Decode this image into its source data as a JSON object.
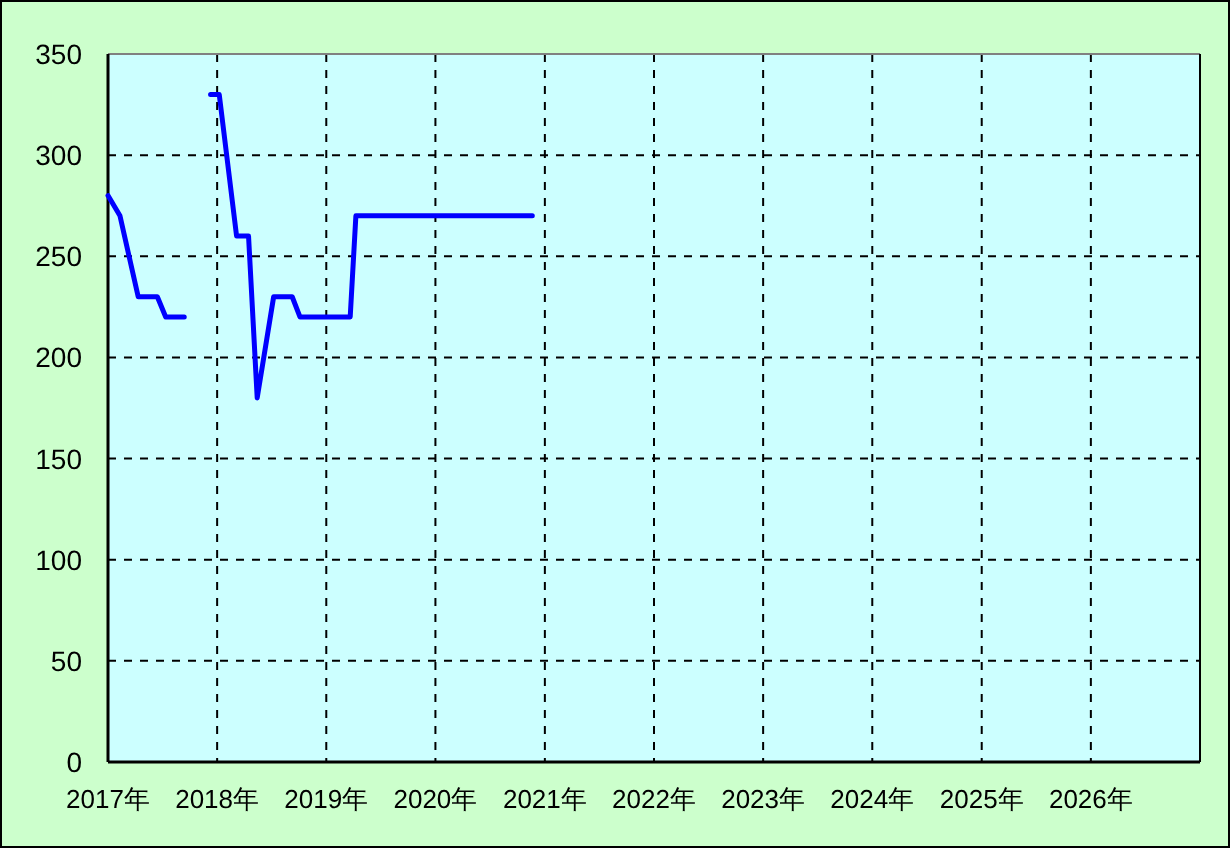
{
  "chart_data": {
    "type": "line",
    "series": [
      {
        "color": "#0000ff",
        "x": [
          "2017-01-01",
          "2017-02-10",
          "2017-04-12",
          "2017-06-15",
          "2017-07-13",
          "2017-09-13"
        ],
        "values": [
          280,
          270,
          230,
          230,
          220,
          220
        ]
      },
      {
        "color": "#0000ff",
        "x": [
          "2017-12-10",
          "2018-01-08",
          "2018-03-07",
          "2018-04-16",
          "2018-05-15",
          "2018-07-09",
          "2018-09-09",
          "2018-10-05",
          "2019-03-22",
          "2019-04-10",
          "2020-11-20"
        ],
        "values": [
          330,
          330,
          260,
          260,
          180,
          230,
          230,
          220,
          220,
          270,
          270
        ]
      }
    ],
    "xlim": [
      "2017",
      "2027"
    ],
    "xticks": [
      {
        "value": "2017",
        "label": "2017年"
      },
      {
        "value": "2018",
        "label": "2018年"
      },
      {
        "value": "2019",
        "label": "2019年"
      },
      {
        "value": "2020",
        "label": "2020年"
      },
      {
        "value": "2021",
        "label": "2021年"
      },
      {
        "value": "2022",
        "label": "2022年"
      },
      {
        "value": "2023",
        "label": "2023年"
      },
      {
        "value": "2024",
        "label": "2024年"
      },
      {
        "value": "2025",
        "label": "2025年"
      },
      {
        "value": "2026",
        "label": "2026年"
      }
    ],
    "ylim": [
      0,
      350
    ],
    "yticks": [
      0,
      50,
      100,
      150,
      200,
      250,
      300,
      350
    ],
    "grid": true
  }
}
